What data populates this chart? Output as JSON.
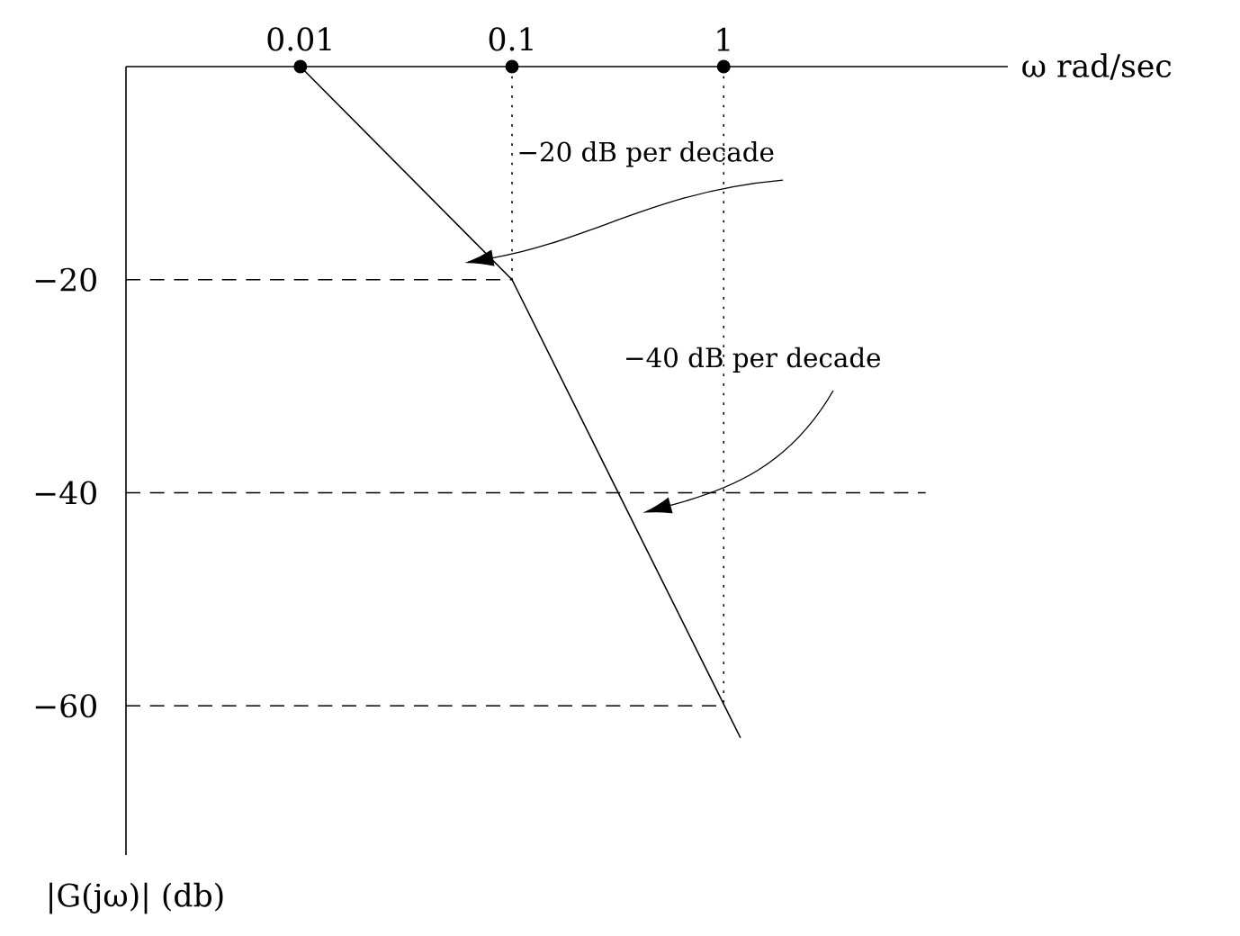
{
  "chart_data": {
    "type": "line",
    "xlabel": "ω rad/sec",
    "ylabel": "|G(jω)| (db)",
    "log": "x",
    "grid": false,
    "xlim": [
      0.0015,
      22
    ],
    "ylim": [
      -74,
      0
    ],
    "xticks": [
      0.01,
      0.1,
      1
    ],
    "yticks": [
      {
        "value": -20,
        "label": "−20"
      },
      {
        "value": -40,
        "label": "−40"
      },
      {
        "value": -60,
        "label": "−60"
      }
    ],
    "series": [
      {
        "color": "#000000",
        "line_style": "solid",
        "marker": "none",
        "x": [
          0.01,
          0.1,
          1.2
        ],
        "values": [
          0,
          -20,
          -63
        ]
      },
      {
        "color": "#000000",
        "line_style": "dashed",
        "marker": "none",
        "x": [
          0.0015,
          0.1
        ],
        "values": [
          -20,
          -20
        ]
      },
      {
        "color": "#000000",
        "line_style": "dashed",
        "marker": "none",
        "x": [
          0.0015,
          9
        ],
        "values": [
          -40,
          -40
        ]
      },
      {
        "color": "#000000",
        "line_style": "dashed",
        "marker": "none",
        "x": [
          0.0015,
          1
        ],
        "values": [
          -60,
          -60
        ]
      },
      {
        "color": "#000000",
        "line_style": "dotted",
        "marker": "none",
        "x": [
          0.1,
          0.1
        ],
        "values": [
          0,
          -20
        ]
      },
      {
        "color": "#000000",
        "line_style": "dotted",
        "marker": "none",
        "x": [
          1,
          1
        ],
        "values": [
          0,
          -60
        ]
      },
      {
        "type": "scatter",
        "color": "#000000",
        "marker": "circle",
        "x": [
          0.01,
          0.1,
          1
        ],
        "values": [
          0,
          0,
          0
        ]
      }
    ],
    "annotations": [
      "−20 dB per decade",
      "−40 dB per decade"
    ]
  }
}
